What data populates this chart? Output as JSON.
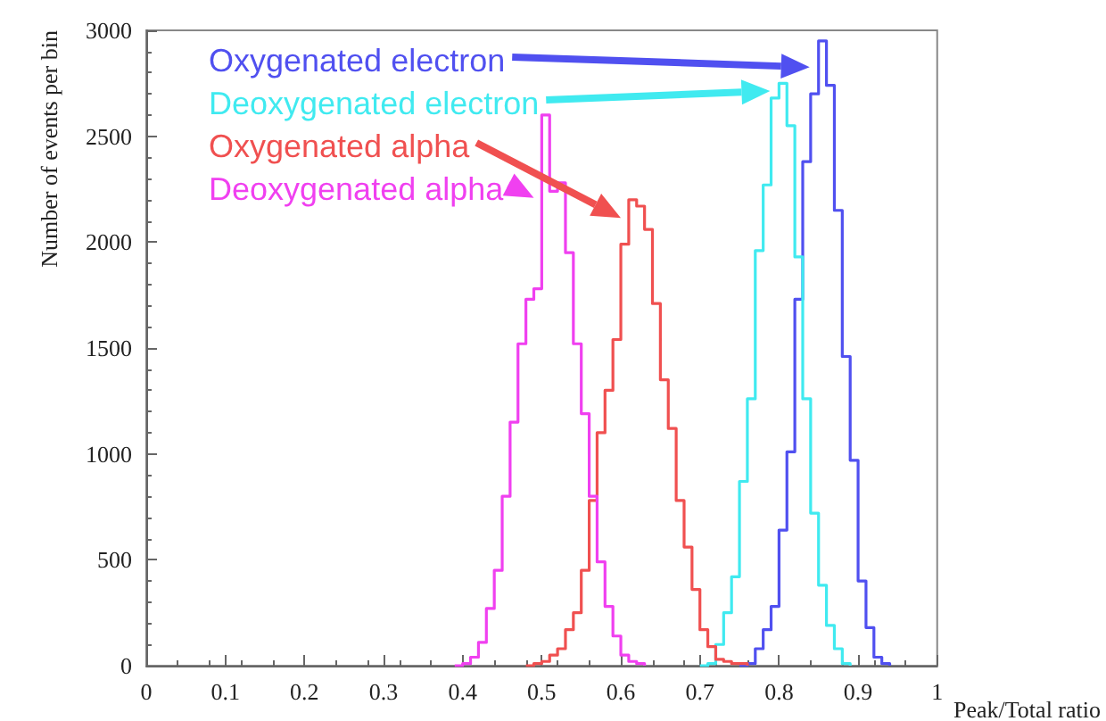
{
  "chart_data": {
    "type": "step",
    "xlabel": "Peak/Total ratio",
    "ylabel": "Number of events per bin",
    "xlim": [
      0,
      1
    ],
    "xticks": [
      0,
      0.1,
      0.2,
      0.3,
      0.4,
      0.5,
      0.6,
      0.7,
      0.8,
      0.9,
      1
    ],
    "ylim": [
      0,
      3000
    ],
    "yticks": [
      0,
      500,
      1000,
      1500,
      2000,
      2500,
      3000
    ],
    "series": [
      {
        "name": "Oxygenated electron",
        "color": "#5050f0",
        "x": [
          0.75,
          0.76,
          0.77,
          0.78,
          0.79,
          0.8,
          0.81,
          0.82,
          0.83,
          0.84,
          0.85,
          0.86,
          0.87,
          0.88,
          0.89,
          0.9,
          0.91,
          0.92,
          0.93,
          0.94
        ],
        "values": [
          0,
          10,
          80,
          170,
          280,
          640,
          1010,
          1730,
          2380,
          2700,
          2950,
          2740,
          2150,
          1460,
          970,
          400,
          180,
          40,
          10,
          0
        ]
      },
      {
        "name": "Deoxygenated electron",
        "color": "#40eaf0",
        "x": [
          0.7,
          0.71,
          0.72,
          0.73,
          0.74,
          0.75,
          0.76,
          0.77,
          0.78,
          0.79,
          0.8,
          0.81,
          0.82,
          0.83,
          0.84,
          0.85,
          0.86,
          0.87,
          0.88,
          0.89
        ],
        "values": [
          0,
          10,
          100,
          250,
          420,
          870,
          1260,
          1960,
          2270,
          2680,
          2750,
          2550,
          1930,
          1260,
          720,
          380,
          190,
          80,
          10,
          0
        ]
      },
      {
        "name": "Oxygenated alpha",
        "color": "#f05050",
        "x": [
          0.48,
          0.49,
          0.5,
          0.51,
          0.52,
          0.53,
          0.54,
          0.55,
          0.56,
          0.57,
          0.58,
          0.59,
          0.6,
          0.61,
          0.62,
          0.63,
          0.64,
          0.65,
          0.66,
          0.67,
          0.68,
          0.69,
          0.7,
          0.71,
          0.72,
          0.73,
          0.74,
          0.75,
          0.76
        ],
        "values": [
          0,
          10,
          20,
          50,
          80,
          170,
          250,
          450,
          780,
          1100,
          1300,
          1540,
          1990,
          2200,
          2170,
          2060,
          1710,
          1350,
          1120,
          780,
          560,
          360,
          170,
          90,
          30,
          20,
          10,
          10,
          0
        ]
      },
      {
        "name": "Deoxygenated alpha",
        "color": "#f040f0",
        "x": [
          0.39,
          0.4,
          0.41,
          0.42,
          0.43,
          0.44,
          0.45,
          0.46,
          0.47,
          0.48,
          0.49,
          0.5,
          0.51,
          0.52,
          0.53,
          0.54,
          0.55,
          0.56,
          0.57,
          0.58,
          0.59,
          0.6,
          0.61,
          0.62,
          0.63
        ],
        "values": [
          0,
          10,
          40,
          110,
          270,
          450,
          800,
          1150,
          1520,
          1730,
          1780,
          2600,
          2240,
          2280,
          1950,
          1520,
          1190,
          800,
          490,
          280,
          140,
          50,
          20,
          10,
          0
        ]
      }
    ]
  }
}
